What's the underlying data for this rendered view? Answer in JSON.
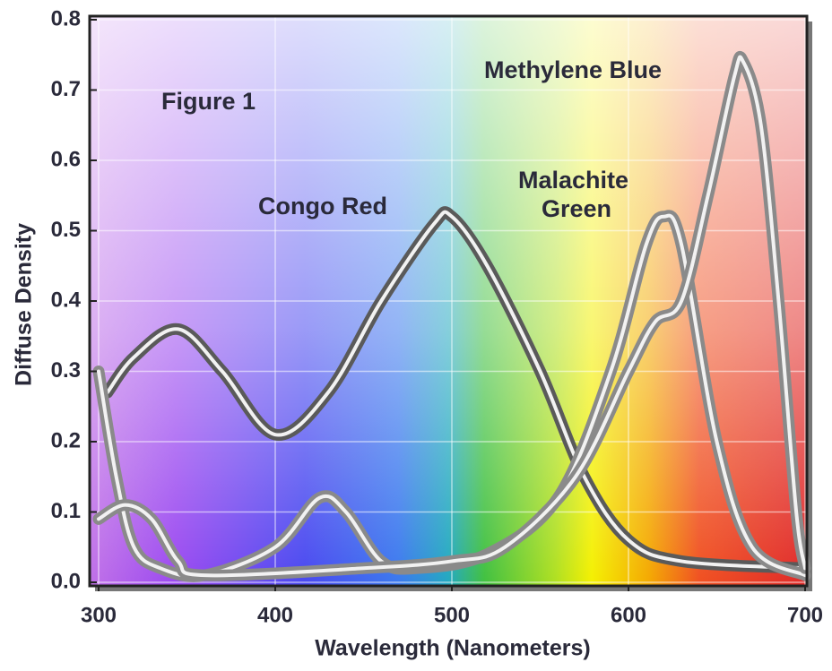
{
  "chart_data": {
    "type": "line",
    "xlabel": "Wavelength (Nanometers)",
    "ylabel": "Diffuse Density",
    "annotations": [
      "Figure 1"
    ],
    "xlim": [
      300,
      700
    ],
    "ylim": [
      0,
      0.8
    ],
    "xticks": [
      300,
      400,
      500,
      600,
      700
    ],
    "yticks": [
      {
        "value": 0,
        "label": "0.0"
      },
      0.1,
      0.2,
      0.3,
      0.4,
      0.5,
      0.6,
      0.7,
      0.8
    ],
    "grid": true,
    "series": [
      {
        "label": [
          "Congo Red"
        ],
        "color": "#5a5a5a",
        "x": [
          305,
          320,
          345,
          370,
          400,
          430,
          460,
          490,
          500,
          520,
          550,
          575,
          600,
          630,
          700
        ],
        "values": [
          0.27,
          0.32,
          0.36,
          0.3,
          0.21,
          0.27,
          0.4,
          0.51,
          0.52,
          0.45,
          0.3,
          0.15,
          0.06,
          0.03,
          0.02
        ]
      },
      {
        "label": [
          "Malachite",
          "Green"
        ],
        "color": "#8a8a8a",
        "x": [
          300,
          310,
          320,
          335,
          360,
          400,
          425,
          440,
          460,
          480,
          520,
          560,
          590,
          610,
          620,
          630,
          650,
          670,
          700
        ],
        "values": [
          0.3,
          0.15,
          0.05,
          0.02,
          0.01,
          0.05,
          0.12,
          0.1,
          0.03,
          0.02,
          0.04,
          0.12,
          0.3,
          0.48,
          0.52,
          0.48,
          0.2,
          0.05,
          0.01
        ]
      },
      {
        "label": [
          "Methylene Blue"
        ],
        "color": "#8a8a8a",
        "x": [
          300,
          315,
          330,
          345,
          360,
          450,
          500,
          530,
          570,
          600,
          615,
          630,
          645,
          660,
          665,
          675,
          685,
          695,
          700
        ],
        "values": [
          0.09,
          0.11,
          0.09,
          0.03,
          0.01,
          0.02,
          0.03,
          0.05,
          0.15,
          0.3,
          0.37,
          0.4,
          0.55,
          0.72,
          0.74,
          0.65,
          0.4,
          0.1,
          0.02
        ]
      }
    ]
  }
}
